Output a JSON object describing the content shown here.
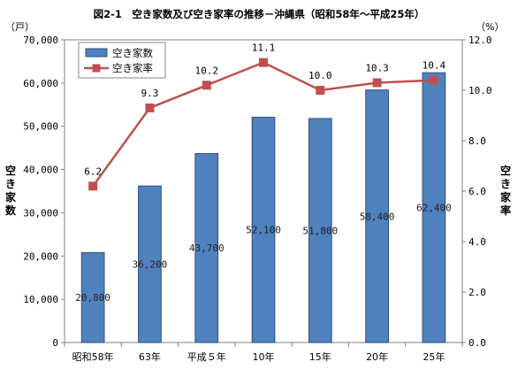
{
  "chart_data": {
    "type": "bar+line",
    "title": "図2-1　空き家数及び空き家率の推移－沖縄県（昭和58年～平成25年）",
    "categories": [
      "昭和58年",
      "63年",
      "平成５年",
      "10年",
      "15年",
      "20年",
      "25年"
    ],
    "series": [
      {
        "name": "空き家数",
        "type": "bar",
        "axis": "left",
        "color": "#4f81bd",
        "values": [
          20800,
          36200,
          43700,
          52100,
          51800,
          58400,
          62400
        ],
        "labels": [
          "20,800",
          "36,200",
          "43,700",
          "52,100",
          "51,800",
          "58,400",
          "62,400"
        ]
      },
      {
        "name": "空き家率",
        "type": "line",
        "axis": "right",
        "color": "#c0504d",
        "values": [
          6.2,
          9.3,
          10.2,
          11.1,
          10.0,
          10.3,
          10.4
        ],
        "labels": [
          "6.2",
          "9.3",
          "10.2",
          "11.1",
          "10.0",
          "10.3",
          "10.4"
        ]
      }
    ],
    "y_left": {
      "unit": "（戸）",
      "label": "空き家数",
      "ylim": [
        0,
        70000
      ],
      "ticks": [
        "0",
        "10,000",
        "20,000",
        "30,000",
        "40,000",
        "50,000",
        "60,000",
        "70,000"
      ]
    },
    "y_right": {
      "unit": "（%）",
      "label": "空き家率",
      "ylim": [
        0,
        12
      ],
      "ticks": [
        "0.0",
        "2.0",
        "4.0",
        "6.0",
        "8.0",
        "10.0",
        "12.0"
      ]
    },
    "grid": false,
    "legend": "top-left"
  }
}
